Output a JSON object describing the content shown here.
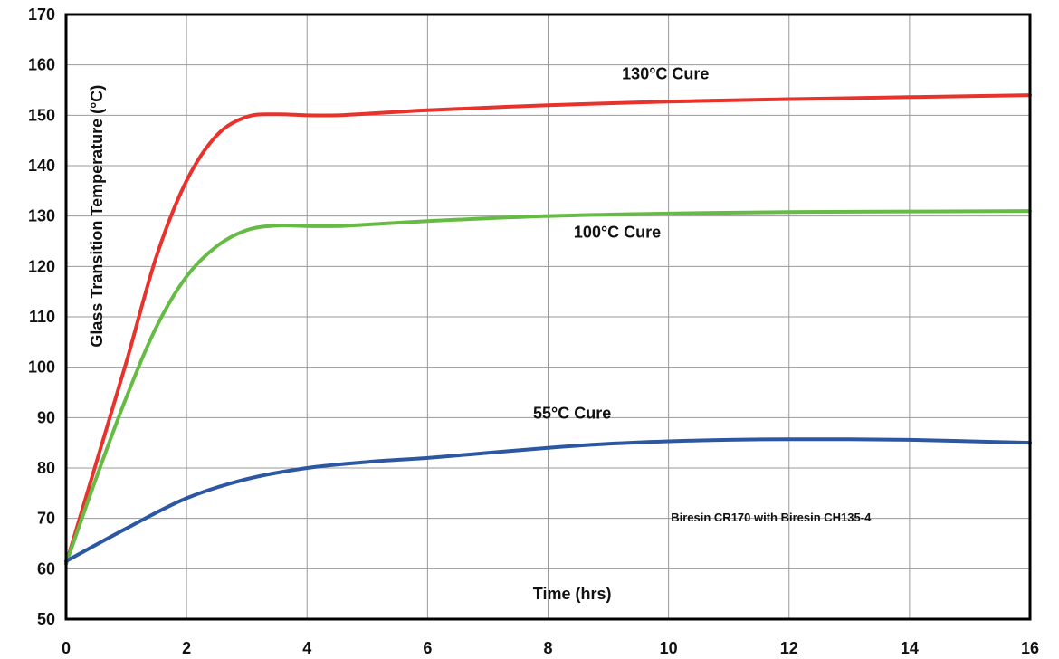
{
  "chart_data": {
    "type": "line",
    "title": "",
    "xlabel": "Time (hrs)",
    "ylabel": "Glass Transition Temperature (°C)",
    "xlim": [
      0,
      16
    ],
    "ylim": [
      50,
      170
    ],
    "xticks": [
      0,
      2,
      4,
      6,
      8,
      10,
      12,
      14,
      16
    ],
    "yticks": [
      50,
      60,
      70,
      80,
      90,
      100,
      110,
      120,
      130,
      140,
      150,
      160,
      170
    ],
    "grid": true,
    "annotation": "Biresin CR170 with Biresin CH135-4",
    "series": [
      {
        "name": "130°C Cure",
        "color": "#e8322c",
        "x": [
          0,
          0.5,
          1,
          1.5,
          2,
          2.5,
          3,
          3.5,
          4,
          4.5,
          5,
          6,
          8,
          10,
          12,
          14,
          16
        ],
        "y": [
          61,
          81,
          101,
          122,
          137,
          146,
          149.7,
          150.2,
          150,
          150,
          150.3,
          151,
          152,
          152.7,
          153.2,
          153.6,
          154
        ]
      },
      {
        "name": "100°C Cure",
        "color": "#66bb44",
        "x": [
          0,
          0.5,
          1,
          1.5,
          2,
          2.5,
          3,
          3.5,
          4,
          4.5,
          5,
          6,
          8,
          10,
          12,
          14,
          16
        ],
        "y": [
          61,
          78,
          94,
          108,
          118,
          124,
          127.2,
          128.1,
          128,
          128,
          128.3,
          129,
          130,
          130.5,
          130.8,
          130.9,
          131
        ]
      },
      {
        "name": "55°C Cure",
        "color": "#2b57a3",
        "x": [
          0,
          1,
          2,
          3,
          4,
          5,
          6,
          7,
          8,
          9,
          10,
          11,
          12,
          13,
          14,
          15,
          16
        ],
        "y": [
          61.5,
          68,
          74,
          77.8,
          80,
          81.2,
          82,
          83,
          84,
          84.8,
          85.3,
          85.6,
          85.7,
          85.7,
          85.6,
          85.3,
          85
        ]
      }
    ]
  }
}
